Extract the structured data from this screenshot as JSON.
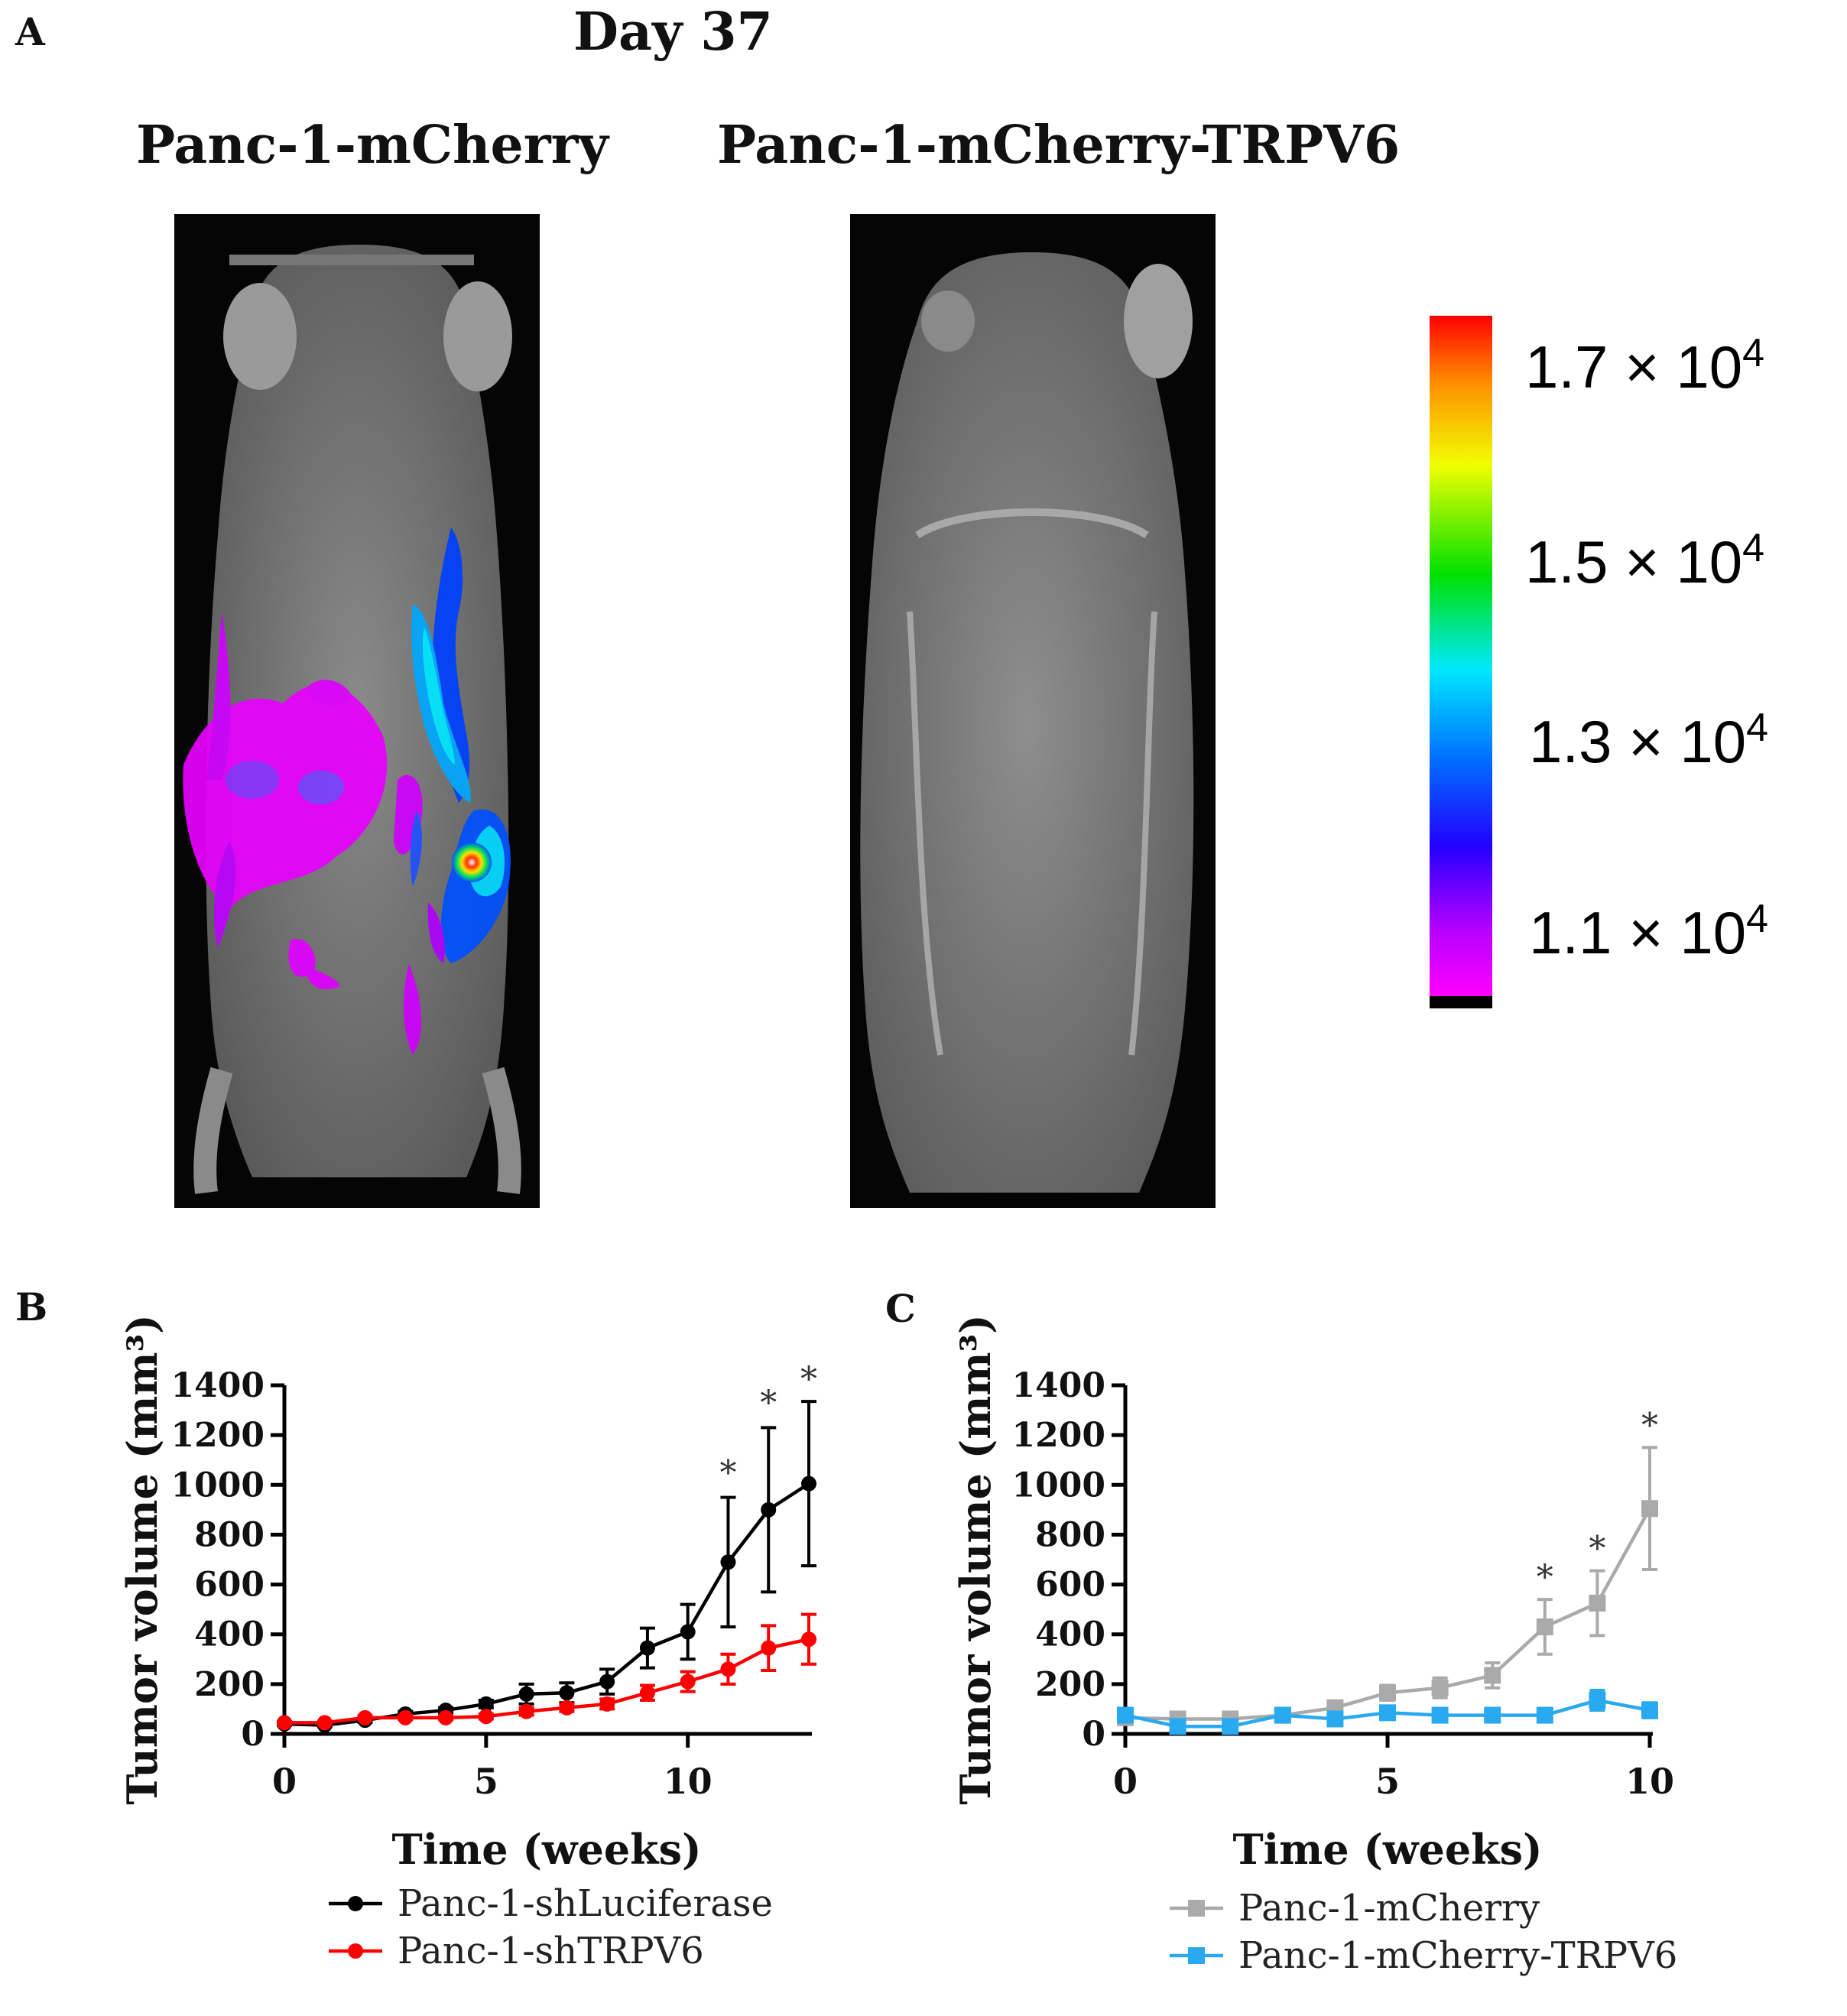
{
  "panel_a": {
    "letter": "A",
    "day_label": "Day 37",
    "left_title": "Panc-1-mCherry",
    "right_title": "Panc-1-mCherry-TRPV6",
    "colorbar": {
      "labels": [
        {
          "base": "1.7 × 10",
          "exp": "4"
        },
        {
          "base": "1.5 × 10",
          "exp": "4"
        },
        {
          "base": "1.3 × 10",
          "exp": "4"
        },
        {
          "base": "1.1 × 10",
          "exp": "4"
        }
      ]
    }
  },
  "panel_b_letter": "B",
  "panel_c_letter": "C",
  "chart_data": [
    {
      "type": "line",
      "panel": "B",
      "ylabel": "Tumor volume (mm³)",
      "xlabel": "Time (weeks)",
      "xlim": [
        0,
        13
      ],
      "ylim": [
        0,
        1400
      ],
      "xticks": [
        0,
        5,
        10
      ],
      "yticks": [
        0,
        200,
        400,
        600,
        800,
        1000,
        1200,
        1400
      ],
      "series": [
        {
          "name": "Panc-1-shLuciferase",
          "color": "#000000",
          "marker": "circle",
          "x": [
            0,
            1,
            2,
            3,
            4,
            5,
            6,
            7,
            8,
            9,
            10,
            11,
            12,
            13
          ],
          "values": [
            40,
            35,
            55,
            80,
            95,
            120,
            160,
            165,
            210,
            345,
            410,
            690,
            900,
            1005
          ],
          "errors": [
            5,
            5,
            8,
            10,
            10,
            15,
            40,
            40,
            50,
            80,
            110,
            260,
            330,
            330
          ]
        },
        {
          "name": "Panc-1-shTRPV6",
          "color": "#ff0000",
          "marker": "circle",
          "x": [
            0,
            1,
            2,
            3,
            4,
            5,
            6,
            7,
            8,
            9,
            10,
            11,
            12,
            13
          ],
          "values": [
            45,
            45,
            65,
            65,
            65,
            70,
            90,
            105,
            120,
            165,
            210,
            260,
            345,
            380
          ],
          "errors": [
            5,
            5,
            8,
            8,
            8,
            10,
            15,
            15,
            20,
            30,
            40,
            60,
            90,
            100
          ]
        }
      ],
      "annotations": [
        {
          "x": 11,
          "y": 960,
          "text": "*"
        },
        {
          "x": 12,
          "y": 1240,
          "text": "*"
        },
        {
          "x": 13,
          "y": 1335,
          "text": "*"
        }
      ]
    },
    {
      "type": "line",
      "panel": "C",
      "ylabel": "Tumor volume (mm³)",
      "xlabel": "Time (weeks)",
      "xlim": [
        0,
        10
      ],
      "ylim": [
        0,
        1400
      ],
      "xticks": [
        0,
        5,
        10
      ],
      "yticks": [
        0,
        200,
        400,
        600,
        800,
        1000,
        1200,
        1400
      ],
      "series": [
        {
          "name": "Panc-1-mCherry",
          "color": "#aaaaaa",
          "marker": "square",
          "x": [
            0,
            1,
            2,
            3,
            4,
            5,
            6,
            7,
            8,
            9,
            10
          ],
          "values": [
            65,
            60,
            60,
            75,
            105,
            165,
            185,
            235,
            430,
            525,
            905
          ],
          "errors": [
            10,
            10,
            10,
            15,
            20,
            30,
            40,
            50,
            110,
            130,
            245
          ]
        },
        {
          "name": "Panc-1-mCherry-TRPV6",
          "color": "#29a9ef",
          "marker": "square",
          "x": [
            0,
            1,
            2,
            3,
            4,
            5,
            6,
            7,
            8,
            9,
            10
          ],
          "values": [
            75,
            30,
            30,
            75,
            60,
            85,
            75,
            75,
            75,
            135,
            95
          ],
          "errors": [
            10,
            10,
            10,
            10,
            10,
            15,
            15,
            15,
            15,
            40,
            30
          ]
        }
      ],
      "annotations": [
        {
          "x": 8,
          "y": 540,
          "text": "*"
        },
        {
          "x": 9,
          "y": 655,
          "text": "*"
        },
        {
          "x": 10,
          "y": 1150,
          "text": "*"
        }
      ]
    }
  ]
}
